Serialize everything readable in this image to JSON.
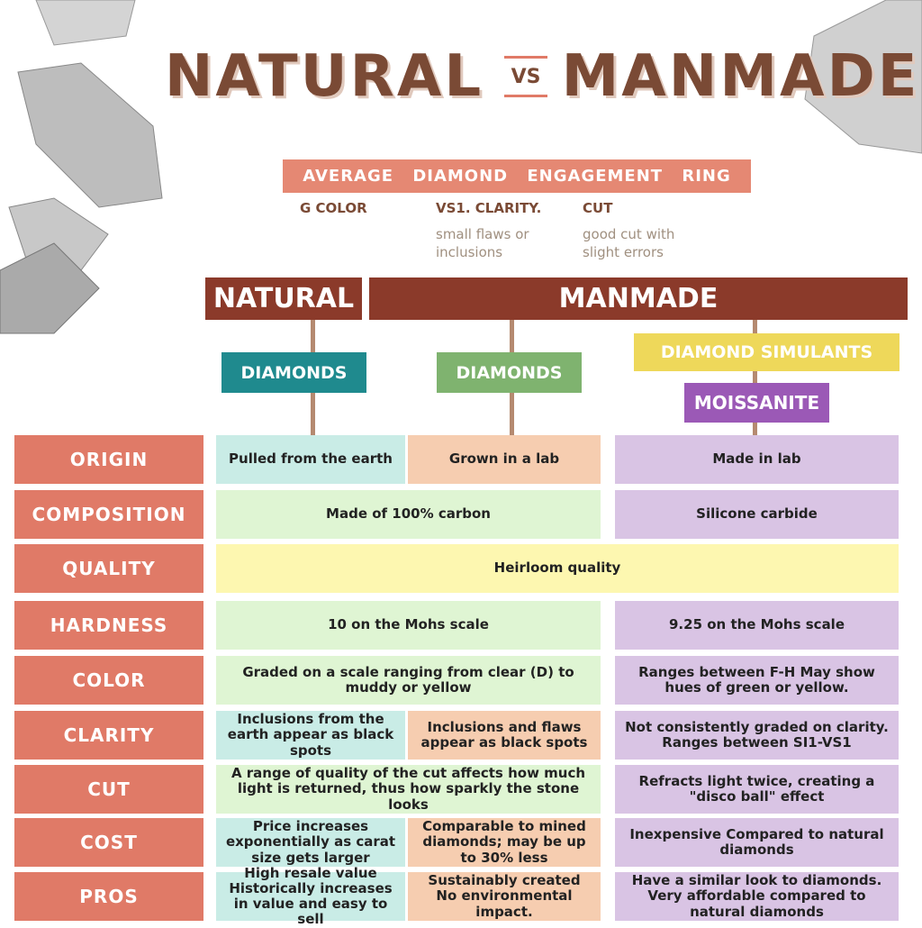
{
  "title": {
    "left": "NATURAL",
    "vs": "VS",
    "right": "MANMADE"
  },
  "ring": {
    "heading": "AVERAGE DIAMOND ENGAGEMENT RING",
    "specs": [
      {
        "label": "G COLOR"
      },
      {
        "label": "VS1. CLARITY.",
        "note": "small flaws or inclusions"
      },
      {
        "label": "CUT",
        "note": "good cut with slight errors"
      }
    ]
  },
  "groups": {
    "natural": "NATURAL",
    "manmade": "MANMADE"
  },
  "types": {
    "natural": "DIAMONDS",
    "lab": "DIAMONDS",
    "simulants": "DIAMOND SIMULANTS",
    "moissanite": "MOISSANITE"
  },
  "rows": [
    {
      "label": "ORIGIN",
      "natural": "Pulled from the earth",
      "lab": "Grown in a lab",
      "moissanite": "Made in lab"
    },
    {
      "label": "COMPOSITION",
      "diamonds": "Made of 100% carbon",
      "moissanite": "Silicone carbide"
    },
    {
      "label": "QUALITY",
      "all": "Heirloom quality"
    },
    {
      "label": "HARDNESS",
      "diamonds": "10 on the Mohs scale",
      "moissanite": "9.25 on the Mohs scale"
    },
    {
      "label": "COLOR",
      "diamonds": "Graded on a scale ranging from clear (D) to muddy or yellow",
      "moissanite": "Ranges between F-H May show hues of green or yellow."
    },
    {
      "label": "CLARITY",
      "natural": "Inclusions from the earth appear as black spots",
      "lab": "Inclusions and flaws appear as black spots",
      "moissanite": "Not consistently graded on clarity. Ranges between SI1-VS1"
    },
    {
      "label": "CUT",
      "diamonds": "A range of quality of the cut affects how much light is returned, thus how sparkly the stone looks",
      "moissanite": "Refracts light twice, creating a \"disco ball\" effect"
    },
    {
      "label": "COST",
      "natural": "Price increases exponentially as carat size gets larger",
      "lab": "Comparable to mined diamonds; may be up to 30% less",
      "moissanite": "Inexpensive Compared to natural diamonds"
    },
    {
      "label": "PROS",
      "natural": "High resale value Historically increases in value and easy to sell",
      "lab": "Sustainably created No environmental impact.",
      "moissanite": "Have a similar look to diamonds. Very affordable compared to natural diamonds"
    }
  ]
}
